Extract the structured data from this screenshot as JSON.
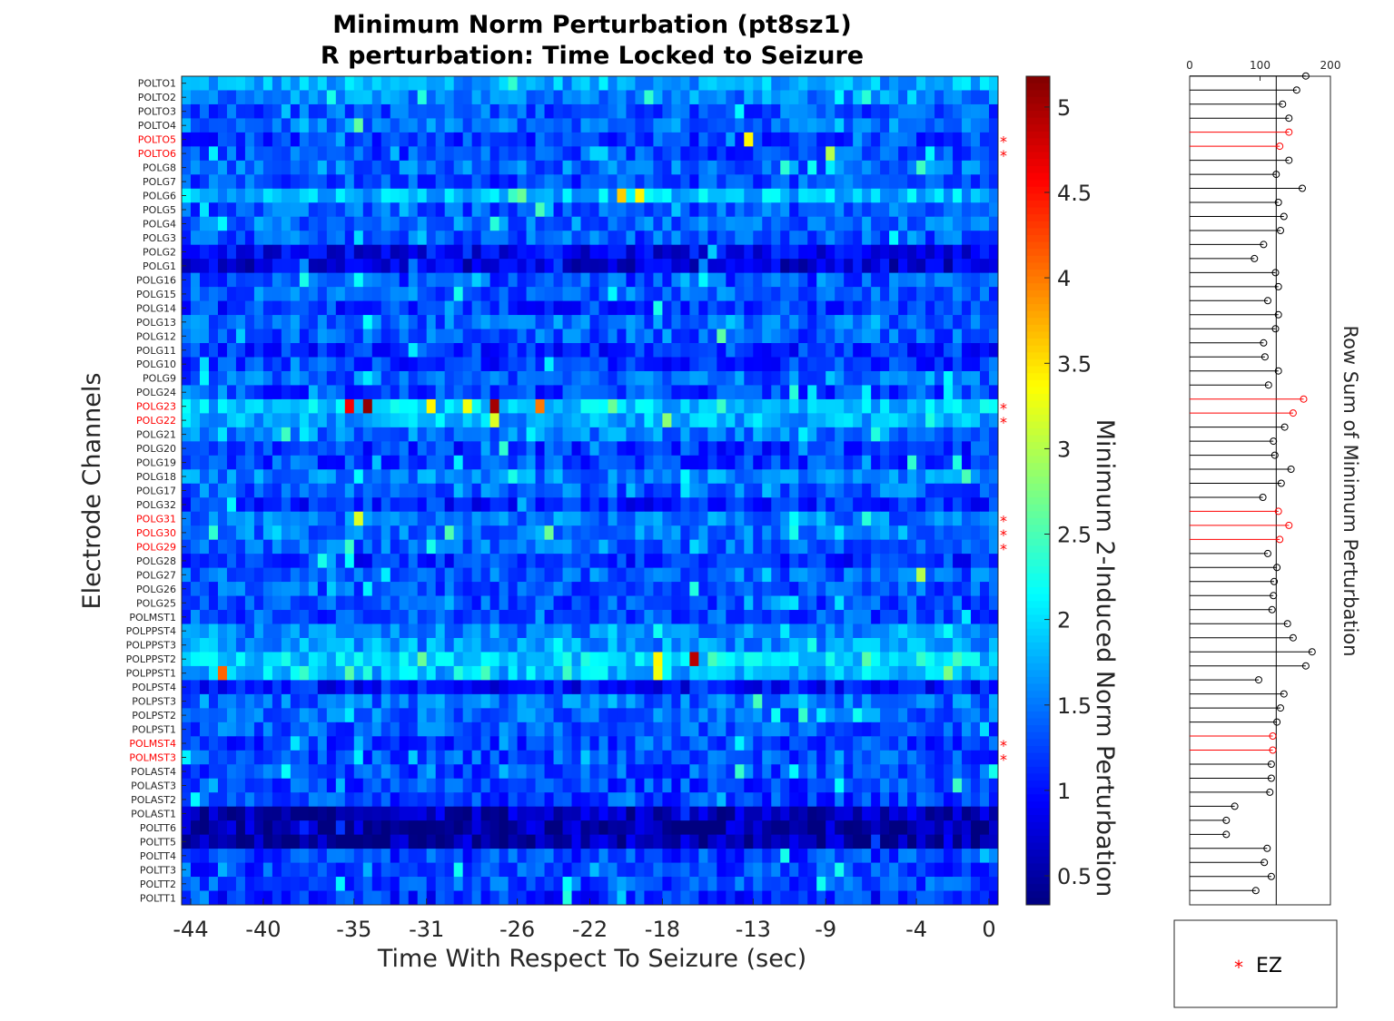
{
  "chart_data": {
    "type": "heatmap",
    "title_line1": "Minimum Norm Perturbation (pt8sz1)",
    "title_line2": "R perturbation:  Time Locked to Seizure",
    "xlabel": "Time With Respect To Seizure (sec)",
    "ylabel": "Electrode Channels",
    "x_ticks": [
      "-44",
      "-40",
      "-35",
      "-31",
      "-26",
      "-22",
      "-18",
      "-13",
      "-9",
      "-4",
      "0"
    ],
    "n_time_bins": 90,
    "channels": [
      "POLTO1",
      "POLTO2",
      "POLTO3",
      "POLTO4",
      "POLTO5",
      "POLTO6",
      "POLG8",
      "POLG7",
      "POLG6",
      "POLG5",
      "POLG4",
      "POLG3",
      "POLG2",
      "POLG1",
      "POLG16",
      "POLG15",
      "POLG14",
      "POLG13",
      "POLG12",
      "POLG11",
      "POLG10",
      "POLG9",
      "POLG24",
      "POLG23",
      "POLG22",
      "POLG21",
      "POLG20",
      "POLG19",
      "POLG18",
      "POLG17",
      "POLG32",
      "POLG31",
      "POLG30",
      "POLG29",
      "POLG28",
      "POLG27",
      "POLG26",
      "POLG25",
      "POLMST1",
      "POLPPST4",
      "POLPPST3",
      "POLPPST2",
      "POLPPST1",
      "POLPST4",
      "POLPST3",
      "POLPST2",
      "POLPST1",
      "POLMST4",
      "POLMST3",
      "POLAST4",
      "POLAST3",
      "POLAST2",
      "POLAST1",
      "POLTT6",
      "POLTT5",
      "POLTT4",
      "POLTT3",
      "POLTT2",
      "POLTT1"
    ],
    "ez_channels": [
      "POLTO5",
      "POLTO6",
      "POLG23",
      "POLG22",
      "POLG31",
      "POLG30",
      "POLG29",
      "POLMST4",
      "POLMST3"
    ],
    "ez_marker": "*",
    "channel_base_values": [
      1.75,
      1.55,
      1.35,
      1.45,
      1.25,
      1.3,
      1.45,
      1.3,
      1.85,
      1.35,
      1.45,
      1.35,
      0.9,
      0.75,
      1.3,
      1.4,
      1.2,
      1.4,
      1.35,
      1.15,
      1.2,
      1.4,
      1.25,
      1.9,
      1.75,
      1.5,
      1.2,
      1.25,
      1.55,
      1.4,
      1.1,
      1.5,
      1.5,
      1.4,
      1.15,
      1.4,
      1.35,
      1.3,
      1.3,
      1.55,
      1.65,
      1.95,
      1.85,
      1.0,
      1.45,
      1.45,
      1.35,
      1.25,
      1.3,
      1.3,
      1.25,
      1.25,
      0.6,
      0.55,
      0.55,
      1.25,
      1.25,
      1.3,
      1.15
    ],
    "hotspots": [
      {
        "channel": "POLTO5",
        "time": -13,
        "value": 3.4
      },
      {
        "channel": "POLTO6",
        "time": -9,
        "value": 3.0
      },
      {
        "channel": "POLG6",
        "time": -20.5,
        "value": 3.6
      },
      {
        "channel": "POLG6",
        "time": -19.5,
        "value": 3.4
      },
      {
        "channel": "POLG23",
        "time": -35.2,
        "value": 4.6
      },
      {
        "channel": "POLG23",
        "time": -34.4,
        "value": 5.1
      },
      {
        "channel": "POLG23",
        "time": -27.5,
        "value": 5.0
      },
      {
        "channel": "POLG23",
        "time": -24.8,
        "value": 4.0
      },
      {
        "channel": "POLG23",
        "time": -30.9,
        "value": 3.4
      },
      {
        "channel": "POLG23",
        "time": -29,
        "value": 3.3
      },
      {
        "channel": "POLG22",
        "time": -27.5,
        "value": 3.2
      },
      {
        "channel": "POLG31",
        "time": -34.8,
        "value": 3.2
      },
      {
        "channel": "POLPPST2",
        "time": -16.3,
        "value": 4.9
      },
      {
        "channel": "POLPPST2",
        "time": -18.2,
        "value": 3.4
      },
      {
        "channel": "POLPPST1",
        "time": -42.3,
        "value": 4.1
      },
      {
        "channel": "POLPPST1",
        "time": -18.2,
        "value": 3.3
      },
      {
        "channel": "POLG27",
        "time": -4,
        "value": 3.0
      }
    ],
    "colorbar": {
      "label": "Minimum 2-Induced Norm Perturbation",
      "min": 0.33,
      "max": 5.18,
      "ticks": [
        "0.5",
        "1",
        "1.5",
        "2",
        "2.5",
        "3",
        "3.5",
        "4",
        "4.5",
        "5"
      ],
      "colormap": "jet"
    },
    "row_sum": {
      "type": "stem",
      "xlabel": "Row Sum of Minimum Perturbation",
      "xlim": [
        0,
        200
      ],
      "x_ticks": [
        "0",
        "100",
        "200"
      ],
      "reference_line": 123,
      "values": [
        165,
        152,
        132,
        141,
        141,
        128,
        141,
        123,
        160,
        126,
        134,
        129,
        105,
        92,
        122,
        126,
        111,
        126,
        122,
        105,
        107,
        126,
        112,
        162,
        147,
        135,
        119,
        121,
        144,
        130,
        104,
        126,
        141,
        128,
        111,
        124,
        120,
        119,
        117,
        139,
        147,
        174,
        165,
        98,
        134,
        129,
        124,
        118,
        118,
        116,
        116,
        114,
        64,
        52,
        52,
        110,
        106,
        116,
        94
      ],
      "ez_color": "#ff0000",
      "normal_color": "#000000"
    },
    "legend": {
      "marker": "*",
      "label": "EZ",
      "color": "#ff0000"
    }
  }
}
